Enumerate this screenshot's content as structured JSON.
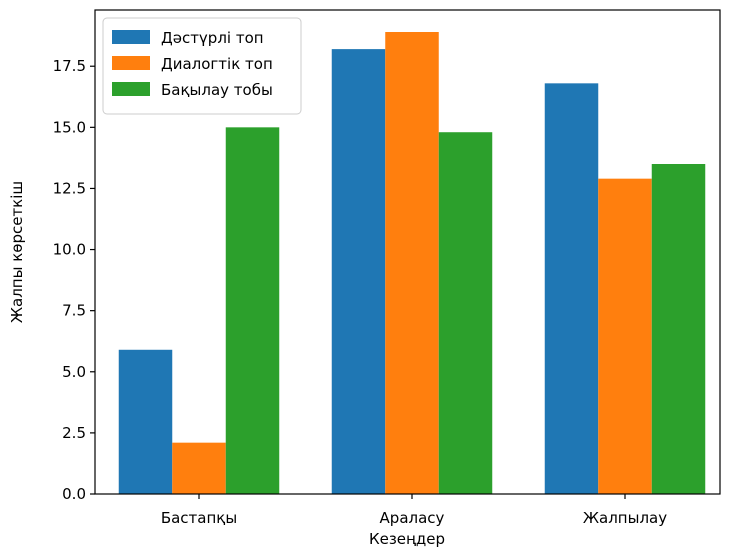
{
  "chart_data": {
    "type": "bar",
    "categories": [
      "Бастапқы",
      "Араласу",
      "Жалпылау"
    ],
    "series": [
      {
        "name": "Дәстүрлі топ",
        "color": "#1f77b4",
        "values": [
          5.9,
          18.2,
          16.8
        ]
      },
      {
        "name": "Диалогтік топ",
        "color": "#ff7f0e",
        "values": [
          2.1,
          18.9,
          12.9
        ]
      },
      {
        "name": "Бақылау тобы",
        "color": "#2ca02c",
        "values": [
          15.0,
          14.8,
          13.5
        ]
      }
    ],
    "xlabel": "Кезеңдер",
    "ylabel": "Жалпы көрсеткіш",
    "ylim": [
      0,
      19.8
    ],
    "yticks": [
      "0.0",
      "2.5",
      "5.0",
      "7.5",
      "10.0",
      "12.5",
      "15.0",
      "17.5"
    ],
    "grid": false,
    "legend_position": "top-left"
  }
}
